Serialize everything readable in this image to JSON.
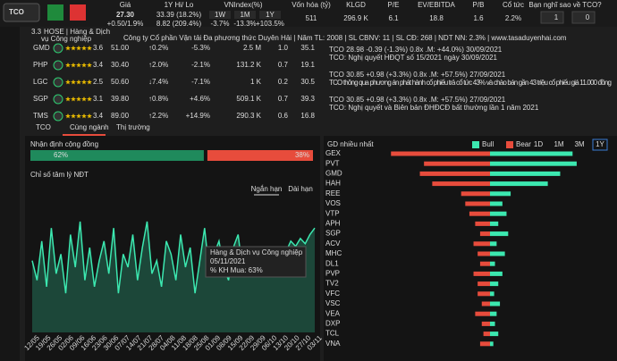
{
  "header": {
    "ticker": "TCO",
    "rating": "3.3",
    "exchange_sector": "HOSE | Hàng & Dịch",
    "sector_cont": "vụ Công nghiệp",
    "company_info": "Công ty Cổ phần Vận tải Đa phương thức Duyên Hải | Năm TL: 2008 | SL CBNV: 11 | SL CĐ: 268 | NDT NN: 2.3% | www.tasaduyenhai.com",
    "price": {
      "label": "Giá",
      "value": "27.30",
      "change": "+0.50/1.9%"
    },
    "hilo": {
      "label": "1Y Hi/ Lo",
      "hi": "33.39 (18.2%)",
      "lo": "8.82 (209.4%)"
    },
    "vnindex": {
      "label": "VNIndex(%)",
      "tabs": [
        "1W",
        "1M",
        "1Y"
      ],
      "values": [
        "-3.7%",
        "-13.3%",
        "+103.5%"
      ]
    },
    "stats": [
      {
        "label": "Vốn hóa (tỷ)",
        "value": "511"
      },
      {
        "label": "KLGD",
        "value": "296.9 K"
      },
      {
        "label": "P/E",
        "value": "6.1"
      },
      {
        "label": "EV/EBITDA",
        "value": "18.8"
      },
      {
        "label": "P/B",
        "value": "1.6"
      },
      {
        "label": "Cổ tức",
        "value": "2.2%"
      }
    ],
    "vote": {
      "label": "Bạn nghĩ sao về TCO?",
      "up": "1",
      "down": "0"
    }
  },
  "peers": {
    "rows": [
      {
        "cells": [
          "GMD",
          "3.6",
          "51.00",
          "↑0.2%",
          "-5.3%",
          "2.5 M",
          "1.0",
          "35.1"
        ],
        "color": "#2ecc71"
      },
      {
        "cells": [
          "PHP",
          "3.4",
          "30.40",
          "↑2.0%",
          "-2.1%",
          "131.2 K",
          "0.7",
          "19.1"
        ],
        "color": "#2ecc71"
      },
      {
        "cells": [
          "LGC",
          "2.5",
          "50.60",
          "↓7.4%",
          "-7.1%",
          "1 K",
          "0.2",
          "30.5"
        ],
        "color": "#e74c3c"
      },
      {
        "cells": [
          "SGP",
          "3.1",
          "39.80",
          "↑0.8%",
          "+4.6%",
          "509.1 K",
          "0.7",
          "39.3"
        ],
        "color": "#2ecc71"
      },
      {
        "cells": [
          "TMS",
          "3.4",
          "89.00",
          "↑2.2%",
          "+14.9%",
          "290.3 K",
          "0.6",
          "16.8"
        ],
        "color": "#2ecc71"
      }
    ]
  },
  "news": [
    {
      "meta": "TCO 28.98 -0.39 (-1.3%) 0.8x .M: +44.0%) 30/09/2021",
      "title": "TCO: Nghị quyết HĐQT số 15/2021 ngày 30/09/2021"
    },
    {
      "meta": "TCO 30.85 +0.98 (+3.3%) 0.8x .M: +57.5%) 27/09/2021",
      "title": "TCO thông qua phương án phát hành cổ phiếu trả cổ tức 43% và chào bán gần 43 triệu cổ phiếu giá 11.000 đồng"
    },
    {
      "meta": "TCO 30.85 +0.98 (+3.3%) 0.8x .M: +57.5%) 27/09/2021",
      "title": "TCO: Nghị quyết và Biên bản ĐHĐCĐ bất thường lần 1 năm 2021"
    }
  ],
  "tabs": [
    "TCO",
    "Cùng ngành",
    "Thị trường"
  ],
  "community": {
    "title": "Nhận định cộng đồng",
    "values": [
      62,
      38
    ],
    "value_labels": [
      "62%",
      "38%"
    ],
    "colors": [
      "#1f8a5c",
      "#e74c3c"
    ]
  },
  "sentiment": {
    "type": "area",
    "title": "Chỉ số tâm lý NĐT",
    "buttons": [
      "Ngắn hạn",
      "Dài hạn"
    ],
    "color": "#3ce8b0",
    "ylim": [
      0,
      100
    ],
    "values": [
      55,
      40,
      70,
      35,
      80,
      45,
      60,
      30,
      75,
      50,
      85,
      40,
      65,
      35,
      55,
      70,
      45,
      80,
      30,
      60,
      50,
      75,
      40,
      65,
      85,
      45,
      55,
      35,
      70,
      60,
      40,
      75,
      50,
      65,
      30,
      55,
      80,
      45,
      60,
      70,
      50,
      40,
      65,
      75,
      45,
      55,
      60,
      50,
      45,
      55,
      60,
      65,
      58,
      62,
      70,
      66,
      72,
      68,
      75,
      80
    ],
    "x_labels": [
      "12/05",
      "19/05",
      "26/05",
      "02/06",
      "09/06",
      "16/06",
      "23/06",
      "30/06",
      "07/07",
      "14/07",
      "21/07",
      "28/07",
      "04/08",
      "11/08",
      "18/08",
      "25/08",
      "01/09",
      "08/09",
      "15/09",
      "22/09",
      "29/09",
      "06/10",
      "13/10",
      "20/10",
      "27/10",
      "03/11"
    ],
    "tooltip": [
      "Hàng & Dịch vụ Công nghiệp",
      "05/11/2021",
      "% KH Mua: 63%"
    ]
  },
  "top_trades": {
    "type": "bar",
    "title": "GD nhiều nhất",
    "buttons": [
      "1D",
      "1M",
      "3M",
      "1Y"
    ],
    "xlim": [
      0,
      130
    ],
    "categories": [
      "GEX",
      "PVT",
      "GMD",
      "HAH",
      "REE",
      "VOS",
      "VTP",
      "APH",
      "SGP",
      "ACV",
      "MHC",
      "DL1",
      "PVP",
      "TV2",
      "VFC",
      "VSC",
      "VEA",
      "DXP",
      "TCL",
      "VNA"
    ],
    "series": [
      {
        "name": "Bull",
        "color": "#3ce8b0",
        "values": [
          100,
          105,
          85,
          70,
          25,
          15,
          20,
          10,
          22,
          8,
          18,
          6,
          15,
          10,
          5,
          12,
          8,
          6,
          10,
          4
        ]
      },
      {
        "name": "Bear",
        "color": "#e74c3c",
        "values": [
          120,
          80,
          85,
          70,
          35,
          30,
          25,
          18,
          12,
          20,
          15,
          12,
          20,
          15,
          15,
          10,
          18,
          10,
          8,
          12
        ]
      }
    ]
  }
}
